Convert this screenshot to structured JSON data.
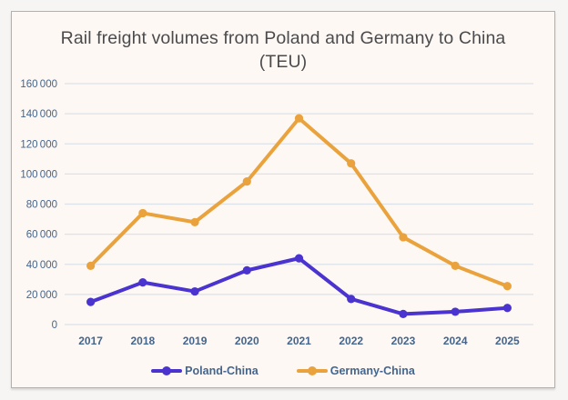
{
  "title": "Rail freight volumes from Poland and Germany to China (TEU)",
  "colors": {
    "panel_background": "#fdf8f4",
    "outer_background": "#f7f5f3",
    "panel_border": "#b3b1af",
    "title_text": "#4b4b4d",
    "axis_text": "#44658e",
    "gridline": "#dbe2ea",
    "poland_series": "#4a33cf",
    "germany_series": "#eaa23c"
  },
  "chart_data": {
    "type": "line",
    "title": "Rail freight volumes from Poland and Germany to China (TEU)",
    "categories": [
      "2017",
      "2018",
      "2019",
      "2020",
      "2021",
      "2022",
      "2023",
      "2024",
      "2025"
    ],
    "series": [
      {
        "name": "Poland-China",
        "color": "#4a33cf",
        "values": [
          15000,
          28000,
          22000,
          36000,
          44000,
          17000,
          7000,
          8500,
          11000
        ]
      },
      {
        "name": "Germany-China",
        "color": "#eaa23c",
        "values": [
          39000,
          74000,
          68000,
          95000,
          137000,
          107000,
          58000,
          39000,
          25500
        ]
      }
    ],
    "xlabel": "",
    "ylabel": "",
    "ylim": [
      0,
      160000
    ],
    "y_ticks": [
      0,
      20000,
      40000,
      60000,
      80000,
      100000,
      120000,
      140000,
      160000
    ],
    "grid": true,
    "legend_position": "bottom",
    "marker": "circle"
  },
  "legend": {
    "items": [
      {
        "label": "Poland-China",
        "color": "#4a33cf"
      },
      {
        "label": "Germany-China",
        "color": "#eaa23c"
      }
    ]
  }
}
